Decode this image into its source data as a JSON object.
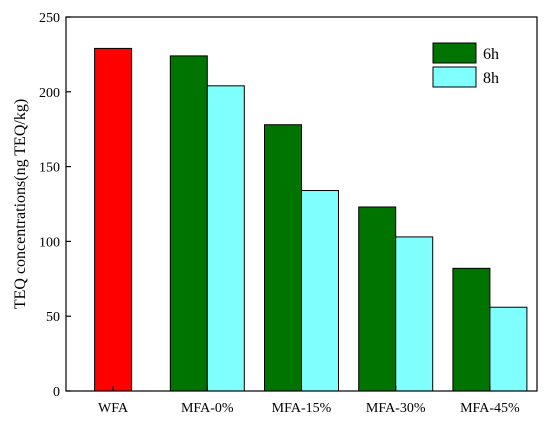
{
  "chart_data": {
    "type": "bar",
    "title": "",
    "xlabel": "",
    "ylabel": "TEQ concentrations(ng TEQ/kg)",
    "ylim": [
      0,
      250
    ],
    "yticks": [
      0,
      50,
      100,
      150,
      200,
      250
    ],
    "categories": [
      "WFA",
      "MFA-0%",
      "MFA-15%",
      "MFA-30%",
      "MFA-45%"
    ],
    "single": {
      "category": "WFA",
      "value": 229,
      "color": "#ff0000"
    },
    "series": [
      {
        "name": "6h",
        "color": "#007400",
        "values": [
          null,
          224,
          178,
          123,
          82
        ]
      },
      {
        "name": "8h",
        "color": "#80ffff",
        "values": [
          null,
          204,
          134,
          103,
          56
        ]
      }
    ],
    "legend": {
      "position": "top-right",
      "entries": [
        "6h",
        "8h"
      ]
    },
    "grid": false
  }
}
